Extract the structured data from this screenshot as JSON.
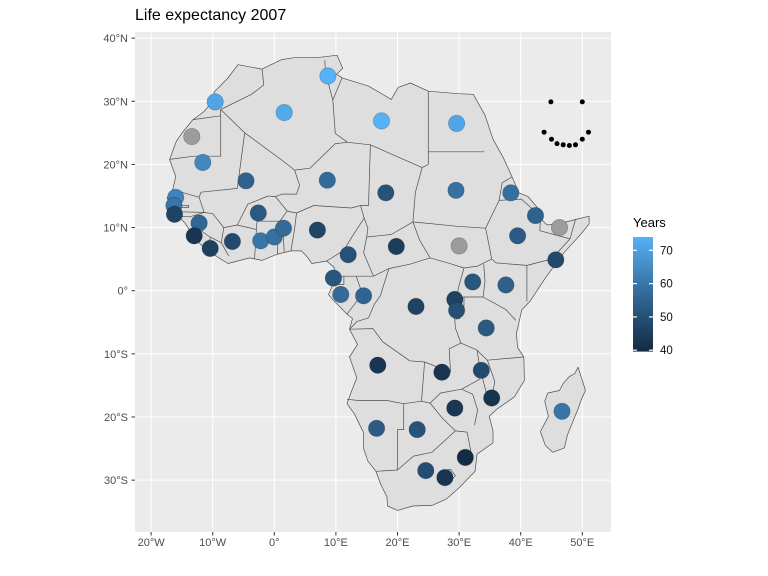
{
  "title": "Life expectancy 2007",
  "legend": {
    "title": "Years",
    "tick_labels": [
      "70",
      "60",
      "50",
      "40"
    ],
    "tick_values": [
      70,
      60,
      50,
      40
    ],
    "domain": [
      39.6,
      74.0
    ],
    "low_color": "#132B43",
    "high_color": "#56B1F7",
    "na_color": "#9C9C9C"
  },
  "axes": {
    "x": {
      "ticks": [
        {
          "value": -20,
          "label": "20°W"
        },
        {
          "value": -10,
          "label": "10°W"
        },
        {
          "value": 0,
          "label": "0°"
        },
        {
          "value": 10,
          "label": "10°E"
        },
        {
          "value": 20,
          "label": "20°E"
        },
        {
          "value": 30,
          "label": "30°E"
        },
        {
          "value": 40,
          "label": "40°E"
        },
        {
          "value": 50,
          "label": "50°E"
        }
      ]
    },
    "y": {
      "ticks": [
        {
          "value": 40,
          "label": "40°N"
        },
        {
          "value": 30,
          "label": "30°N"
        },
        {
          "value": 20,
          "label": "20°N"
        },
        {
          "value": 10,
          "label": "10°N"
        },
        {
          "value": 0,
          "label": "0°"
        },
        {
          "value": -10,
          "label": "10°S"
        },
        {
          "value": -20,
          "label": "20°S"
        },
        {
          "value": -30,
          "label": "30°S"
        }
      ]
    }
  },
  "chart_data": {
    "type": "scatter",
    "title": "Life expectancy 2007",
    "xlabel": "",
    "ylabel": "",
    "legend_title": "Years",
    "x_range": [
      -22.6,
      54.7
    ],
    "y_range": [
      -38.2,
      41.0
    ],
    "grid": true,
    "color_scale": {
      "low": "#132B43",
      "high": "#56B1F7",
      "domain": [
        39.6,
        74.0
      ],
      "na": "#9C9C9C"
    },
    "points": [
      {
        "country": "morocco",
        "lon": -9.6,
        "lat": 29.9,
        "value": 71.2
      },
      {
        "country": "tunisia",
        "lon": 8.7,
        "lat": 34.0,
        "value": 73.9
      },
      {
        "country": "algeria",
        "lon": 1.6,
        "lat": 28.2,
        "value": 72.3
      },
      {
        "country": "libya",
        "lon": 17.4,
        "lat": 26.9,
        "value": 74.0
      },
      {
        "country": "egypt",
        "lon": 29.6,
        "lat": 26.5,
        "value": 71.3
      },
      {
        "country": "western-sahara",
        "lon": -13.4,
        "lat": 24.4,
        "value": null
      },
      {
        "country": "mauritania",
        "lon": -11.6,
        "lat": 20.3,
        "value": 64.2
      },
      {
        "country": "mali",
        "lon": -4.6,
        "lat": 17.4,
        "value": 54.5
      },
      {
        "country": "niger",
        "lon": 8.6,
        "lat": 17.5,
        "value": 56.9
      },
      {
        "country": "chad",
        "lon": 18.1,
        "lat": 15.5,
        "value": 50.7
      },
      {
        "country": "sudan",
        "lon": 29.5,
        "lat": 15.9,
        "value": 58.6
      },
      {
        "country": "eritrea",
        "lon": 38.4,
        "lat": 15.5,
        "value": 58.0
      },
      {
        "country": "senegal",
        "lon": -16.0,
        "lat": 14.8,
        "value": 63.1
      },
      {
        "country": "gambia",
        "lon": -16.3,
        "lat": 13.5,
        "value": 59.4
      },
      {
        "country": "guinea-bissau",
        "lon": -16.2,
        "lat": 12.1,
        "value": 46.4
      },
      {
        "country": "guinea",
        "lon": -12.2,
        "lat": 10.7,
        "value": 56.0
      },
      {
        "country": "burkina-faso",
        "lon": -2.6,
        "lat": 12.3,
        "value": 52.3
      },
      {
        "country": "sierra-leone",
        "lon": -13.0,
        "lat": 8.7,
        "value": 42.6
      },
      {
        "country": "liberia",
        "lon": -10.4,
        "lat": 6.7,
        "value": 45.7
      },
      {
        "country": "cote-divoire",
        "lon": -6.8,
        "lat": 7.8,
        "value": 48.3
      },
      {
        "country": "ghana",
        "lon": -2.2,
        "lat": 7.9,
        "value": 60.0
      },
      {
        "country": "togo",
        "lon": 0.0,
        "lat": 8.5,
        "value": 58.4
      },
      {
        "country": "benin",
        "lon": 1.5,
        "lat": 9.9,
        "value": 56.7
      },
      {
        "country": "nigeria",
        "lon": 7.0,
        "lat": 9.6,
        "value": 46.9
      },
      {
        "country": "cameroon",
        "lon": 12.0,
        "lat": 5.7,
        "value": 50.4
      },
      {
        "country": "central-african-republic",
        "lon": 19.8,
        "lat": 7.0,
        "value": 44.7
      },
      {
        "country": "south-sudan",
        "lon": 30.0,
        "lat": 7.1,
        "value": null
      },
      {
        "country": "ethiopia",
        "lon": 39.5,
        "lat": 8.7,
        "value": 52.9
      },
      {
        "country": "djibouti",
        "lon": 42.4,
        "lat": 11.9,
        "value": 54.8
      },
      {
        "country": "somaliland",
        "lon": 46.3,
        "lat": 10.0,
        "value": null
      },
      {
        "country": "somalia",
        "lon": 45.7,
        "lat": 4.9,
        "value": 48.2
      },
      {
        "country": "uganda",
        "lon": 32.2,
        "lat": 1.4,
        "value": 51.5
      },
      {
        "country": "kenya",
        "lon": 37.6,
        "lat": 0.9,
        "value": 54.1
      },
      {
        "country": "equatorial-guinea",
        "lon": 9.6,
        "lat": 2.0,
        "value": 51.6
      },
      {
        "country": "gabon",
        "lon": 10.8,
        "lat": -0.6,
        "value": 56.7
      },
      {
        "country": "congo",
        "lon": 14.5,
        "lat": -0.8,
        "value": 55.3
      },
      {
        "country": "dr-congo",
        "lon": 23.0,
        "lat": -2.5,
        "value": 46.5
      },
      {
        "country": "rwanda",
        "lon": 29.3,
        "lat": -1.4,
        "value": 46.2
      },
      {
        "country": "burundi",
        "lon": 29.6,
        "lat": -3.1,
        "value": 49.6
      },
      {
        "country": "tanzania",
        "lon": 34.4,
        "lat": -5.9,
        "value": 52.5
      },
      {
        "country": "angola",
        "lon": 16.8,
        "lat": -11.8,
        "value": 42.7
      },
      {
        "country": "zambia",
        "lon": 27.2,
        "lat": -12.9,
        "value": 42.4
      },
      {
        "country": "malawi",
        "lon": 33.6,
        "lat": -12.6,
        "value": 48.3
      },
      {
        "country": "mozambique",
        "lon": 35.3,
        "lat": -17.0,
        "value": 42.1
      },
      {
        "country": "zimbabwe",
        "lon": 29.3,
        "lat": -18.6,
        "value": 43.5
      },
      {
        "country": "namibia",
        "lon": 16.6,
        "lat": -21.8,
        "value": 52.9
      },
      {
        "country": "botswana",
        "lon": 23.2,
        "lat": -22.0,
        "value": 50.7
      },
      {
        "country": "madagascar",
        "lon": 46.7,
        "lat": -19.1,
        "value": 59.4
      },
      {
        "country": "swaziland",
        "lon": 31.0,
        "lat": -26.4,
        "value": 39.6
      },
      {
        "country": "south-africa",
        "lon": 24.6,
        "lat": -28.5,
        "value": 49.3
      },
      {
        "country": "lesotho",
        "lon": 27.7,
        "lat": -29.6,
        "value": 42.6
      }
    ],
    "smiley_points": {
      "color": "#000000",
      "eyes": [
        {
          "lon": 44.9,
          "lat": 29.9
        },
        {
          "lon": 50.0,
          "lat": 29.9
        }
      ],
      "mouth": [
        {
          "lon": 43.8,
          "lat": 25.1
        },
        {
          "lon": 45.0,
          "lat": 24.0
        },
        {
          "lon": 45.9,
          "lat": 23.3
        },
        {
          "lon": 46.9,
          "lat": 23.1
        },
        {
          "lon": 47.9,
          "lat": 23.0
        },
        {
          "lon": 48.9,
          "lat": 23.1
        },
        {
          "lon": 50.0,
          "lat": 24.0
        },
        {
          "lon": 51.0,
          "lat": 25.1
        }
      ]
    }
  },
  "colors": {
    "panel_background": "#EBEBEB",
    "gridline": "#FFFFFF",
    "land_fill": "#DEDEDE",
    "land_border": "#4E4E4E",
    "tick_label": "#4D4D4D"
  }
}
